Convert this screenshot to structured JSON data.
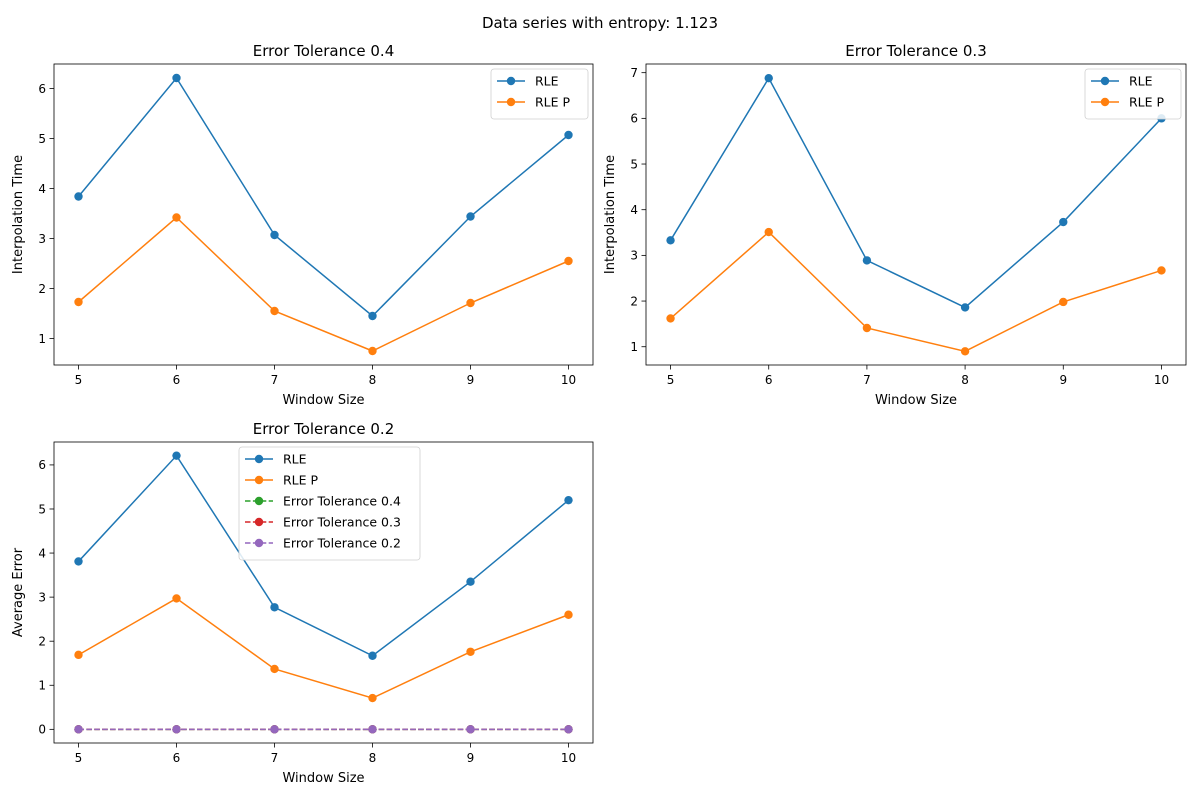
{
  "figure": {
    "suptitle": "Data series with entropy: 1.123"
  },
  "colors": {
    "blue": "#1f77b4",
    "orange": "#ff7f0e",
    "green": "#2ca02c",
    "red": "#d62728",
    "purple": "#9467bd"
  },
  "chart_data": [
    {
      "type": "line",
      "title": "Error Tolerance 0.4",
      "xlabel": "Window Size",
      "ylabel": "Interpolation Time",
      "x": [
        5,
        6,
        7,
        8,
        9,
        10
      ],
      "xlim": [
        4.75,
        10.25
      ],
      "ylim": [
        0.47,
        6.49
      ],
      "xticks": [
        5,
        6,
        7,
        8,
        9,
        10
      ],
      "yticks": [
        1,
        2,
        3,
        4,
        5,
        6
      ],
      "legend_position": "upper right",
      "series": [
        {
          "name": "RLE",
          "values": [
            3.84,
            6.21,
            3.07,
            1.45,
            3.44,
            5.07
          ],
          "color": "#1f77b4",
          "dash": false
        },
        {
          "name": "RLE P",
          "values": [
            1.73,
            3.42,
            1.55,
            0.75,
            1.71,
            2.55
          ],
          "color": "#ff7f0e",
          "dash": false
        }
      ]
    },
    {
      "type": "line",
      "title": "Error Tolerance 0.3",
      "xlabel": "Window Size",
      "ylabel": "Interpolation Time",
      "x": [
        5,
        6,
        7,
        8,
        9,
        10
      ],
      "xlim": [
        4.75,
        10.25
      ],
      "ylim": [
        0.6,
        7.19
      ],
      "xticks": [
        5,
        6,
        7,
        8,
        9,
        10
      ],
      "yticks": [
        1,
        2,
        3,
        4,
        5,
        6,
        7
      ],
      "legend_position": "upper right",
      "series": [
        {
          "name": "RLE",
          "values": [
            3.33,
            6.88,
            2.89,
            1.86,
            3.73,
            6.0
          ],
          "color": "#1f77b4",
          "dash": false
        },
        {
          "name": "RLE P",
          "values": [
            1.62,
            3.51,
            1.41,
            0.9,
            1.98,
            2.67
          ],
          "color": "#ff7f0e",
          "dash": false
        }
      ]
    },
    {
      "type": "line",
      "title": "Error Tolerance 0.2",
      "xlabel": "Window Size",
      "ylabel": "Average Error",
      "x": [
        5,
        6,
        7,
        8,
        9,
        10
      ],
      "xlim": [
        4.75,
        10.25
      ],
      "ylim": [
        -0.31,
        6.52
      ],
      "xticks": [
        5,
        6,
        7,
        8,
        9,
        10
      ],
      "yticks": [
        0,
        1,
        2,
        3,
        4,
        5,
        6
      ],
      "legend_position": "upper center",
      "series": [
        {
          "name": "RLE",
          "values": [
            3.81,
            6.21,
            2.77,
            1.67,
            3.35,
            5.2
          ],
          "color": "#1f77b4",
          "dash": false
        },
        {
          "name": "RLE P",
          "values": [
            1.69,
            2.97,
            1.37,
            0.71,
            1.76,
            2.6
          ],
          "color": "#ff7f0e",
          "dash": false
        },
        {
          "name": "Error Tolerance 0.4",
          "values": [
            0,
            0,
            0,
            0,
            0,
            0
          ],
          "color": "#2ca02c",
          "dash": true
        },
        {
          "name": "Error Tolerance 0.3",
          "values": [
            0,
            0,
            0,
            0,
            0,
            0
          ],
          "color": "#d62728",
          "dash": true
        },
        {
          "name": "Error Tolerance 0.2",
          "values": [
            0,
            0,
            0,
            0,
            0,
            0
          ],
          "color": "#9467bd",
          "dash": true
        }
      ]
    }
  ]
}
